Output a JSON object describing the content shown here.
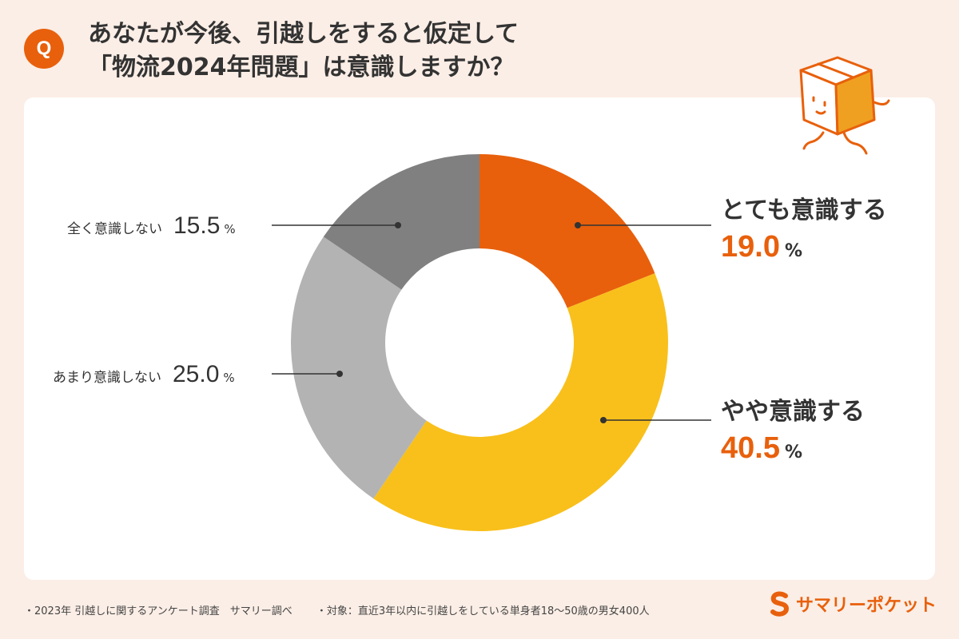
{
  "header": {
    "badge": "Q",
    "question_line1": "あなたが今後、引越しをすると仮定して",
    "question_line2": "「物流2024年問題」は意識しますか？"
  },
  "chart_data": {
    "type": "pie",
    "donut": true,
    "title": "",
    "unit": "%",
    "slices": [
      {
        "label": "とても意識する",
        "value": 19.0,
        "value_text": "19.0",
        "color": "#e8600c"
      },
      {
        "label": "やや意識する",
        "value": 40.5,
        "value_text": "40.5",
        "color": "#f9c01b"
      },
      {
        "label": "あまり意識しない",
        "value": 25.0,
        "value_text": "25.0",
        "color": "#b3b3b3"
      },
      {
        "label": "全く意識しない",
        "value": 15.5,
        "value_text": "15.5",
        "color": "#808080"
      }
    ]
  },
  "footer": {
    "source": "・2023年 引越しに関するアンケート調査　サマリー調べ",
    "target": "・対象：直近3年以内に引越しをしている単身者18～50歳の男女400人"
  },
  "brand": {
    "name": "サマリーポケット",
    "color": "#e8600c"
  },
  "colors": {
    "background": "#fbeee6",
    "accent": "#e8600c",
    "card": "#ffffff"
  }
}
